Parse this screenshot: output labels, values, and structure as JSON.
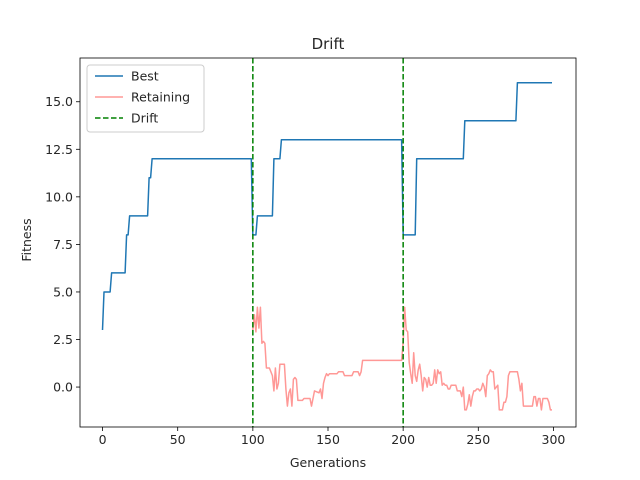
{
  "chart_data": {
    "type": "line",
    "title": "Drift",
    "xlabel": "Generations",
    "ylabel": "Fitness",
    "xlim": [
      -15,
      315
    ],
    "ylim": [
      -2.1,
      17.3
    ],
    "xticks": [
      0,
      50,
      100,
      150,
      200,
      250,
      300
    ],
    "xtick_labels": [
      "0",
      "50",
      "100",
      "150",
      "200",
      "250",
      "300"
    ],
    "yticks": [
      0.0,
      2.5,
      5.0,
      7.5,
      10.0,
      12.5,
      15.0
    ],
    "ytick_labels": [
      "0.0",
      "2.5",
      "5.0",
      "7.5",
      "10.0",
      "12.5",
      "15.0"
    ],
    "legend_position": "top-left",
    "grid": false,
    "series": [
      {
        "name": "Best",
        "color": "#1f77b4",
        "style": "solid",
        "points": [
          [
            0,
            3
          ],
          [
            1,
            5
          ],
          [
            5,
            5
          ],
          [
            6,
            6
          ],
          [
            15,
            6
          ],
          [
            16,
            8
          ],
          [
            17,
            8
          ],
          [
            18,
            9
          ],
          [
            30,
            9
          ],
          [
            31,
            11
          ],
          [
            32,
            11
          ],
          [
            33,
            12
          ],
          [
            99,
            12
          ],
          [
            100,
            8
          ],
          [
            102,
            8
          ],
          [
            103,
            9
          ],
          [
            113,
            9
          ],
          [
            114,
            12
          ],
          [
            118,
            12
          ],
          [
            119,
            13
          ],
          [
            199,
            13
          ],
          [
            200,
            8
          ],
          [
            208,
            8
          ],
          [
            209,
            12
          ],
          [
            240,
            12
          ],
          [
            241,
            14
          ],
          [
            275,
            14
          ],
          [
            276,
            16
          ],
          [
            299,
            16
          ]
        ]
      },
      {
        "name": "Retaining",
        "color": "#ff9896",
        "style": "solid",
        "points": [
          [
            100,
            3.0
          ],
          [
            101,
            3.8
          ],
          [
            102,
            2.9
          ],
          [
            103,
            4.2
          ],
          [
            104,
            3.1
          ],
          [
            105,
            4.2
          ],
          [
            106,
            2.3
          ],
          [
            107,
            2.4
          ],
          [
            108,
            2.3
          ],
          [
            109,
            1.0
          ],
          [
            111,
            1.0
          ],
          [
            112,
            0.8
          ],
          [
            113,
            0.6
          ],
          [
            114,
            -0.2
          ],
          [
            115,
            1.0
          ],
          [
            116,
            -0.1
          ],
          [
            117,
            0.2
          ],
          [
            118,
            1.2
          ],
          [
            121,
            1.2
          ],
          [
            122,
            -0.1
          ],
          [
            123,
            -1.0
          ],
          [
            124,
            -0.3
          ],
          [
            125,
            -0.1
          ],
          [
            126,
            -1.0
          ],
          [
            127,
            0.4
          ],
          [
            128,
            0.5
          ],
          [
            129,
            0.4
          ],
          [
            130,
            -0.7
          ],
          [
            133,
            -0.7
          ],
          [
            134,
            -0.6
          ],
          [
            138,
            -0.6
          ],
          [
            139,
            -1.0
          ],
          [
            140,
            -0.6
          ],
          [
            141,
            -0.2
          ],
          [
            144,
            -0.3
          ],
          [
            145,
            -0.1
          ],
          [
            146,
            -0.6
          ],
          [
            147,
            0.2
          ],
          [
            148,
            0.5
          ],
          [
            149,
            0.7
          ],
          [
            150,
            0.6
          ],
          [
            151,
            0.7
          ],
          [
            156,
            0.7
          ],
          [
            157,
            0.8
          ],
          [
            160,
            0.8
          ],
          [
            161,
            0.6
          ],
          [
            166,
            0.6
          ],
          [
            167,
            0.8
          ],
          [
            170,
            0.8
          ],
          [
            171,
            0.6
          ],
          [
            172,
            0.8
          ],
          [
            173,
            1.4
          ],
          [
            199,
            1.4
          ],
          [
            200,
            2.4
          ],
          [
            201,
            4.2
          ],
          [
            202,
            3.0
          ],
          [
            203,
            2.9
          ],
          [
            204,
            1.3
          ],
          [
            205,
            0.7
          ],
          [
            206,
            0.2
          ],
          [
            207,
            1.8
          ],
          [
            208,
            0.6
          ],
          [
            209,
            0.3
          ],
          [
            210,
            0.9
          ],
          [
            211,
            1.2
          ],
          [
            212,
            0.6
          ],
          [
            213,
            -0.2
          ],
          [
            214,
            0.5
          ],
          [
            215,
            0.4
          ],
          [
            216,
            0.0
          ],
          [
            217,
            0.5
          ],
          [
            218,
            0.1
          ],
          [
            219,
            0.1
          ],
          [
            220,
            0.2
          ],
          [
            221,
            0.9
          ],
          [
            222,
            0.2
          ],
          [
            223,
            0.9
          ],
          [
            224,
            0.7
          ],
          [
            225,
            0.8
          ],
          [
            226,
            0.1
          ],
          [
            227,
            0.2
          ],
          [
            228,
            0.1
          ],
          [
            229,
            0.1
          ],
          [
            230,
            -0.1
          ],
          [
            231,
            -0.1
          ],
          [
            232,
            0.1
          ],
          [
            235,
            0.1
          ],
          [
            236,
            -0.2
          ],
          [
            238,
            -0.2
          ],
          [
            239,
            -0.5
          ],
          [
            240,
            0.0
          ],
          [
            241,
            -1.2
          ],
          [
            242,
            -1.2
          ],
          [
            243,
            -0.9
          ],
          [
            244,
            -0.4
          ],
          [
            245,
            -1.0
          ],
          [
            246,
            -0.5
          ],
          [
            247,
            -0.2
          ],
          [
            248,
            -0.2
          ],
          [
            249,
            -0.1
          ],
          [
            250,
            -0.1
          ],
          [
            251,
            -0.2
          ],
          [
            252,
            -0.1
          ],
          [
            253,
            0.2
          ],
          [
            254,
            0.0
          ],
          [
            255,
            -0.5
          ],
          [
            256,
            0.6
          ],
          [
            257,
            0.7
          ],
          [
            258,
            0.9
          ],
          [
            259,
            0.8
          ],
          [
            260,
            0.8
          ],
          [
            261,
            -0.1
          ],
          [
            262,
            0.0
          ],
          [
            263,
            0.1
          ],
          [
            264,
            -1.2
          ],
          [
            266,
            -1.2
          ],
          [
            267,
            -0.8
          ],
          [
            268,
            -0.8
          ],
          [
            269,
            -0.5
          ],
          [
            270,
            0.6
          ],
          [
            271,
            0.8
          ],
          [
            276,
            0.8
          ],
          [
            277,
            0.4
          ],
          [
            278,
            -0.2
          ],
          [
            279,
            0.2
          ],
          [
            280,
            -1.0
          ],
          [
            286,
            -1.0
          ],
          [
            287,
            -0.5
          ],
          [
            288,
            -0.5
          ],
          [
            289,
            -1.0
          ],
          [
            290,
            -0.6
          ],
          [
            291,
            -0.6
          ],
          [
            292,
            -1.2
          ],
          [
            293,
            -0.6
          ],
          [
            295,
            -0.6
          ],
          [
            296,
            -0.6
          ],
          [
            297,
            -0.8
          ],
          [
            298,
            -1.2
          ],
          [
            299,
            -1.2
          ]
        ]
      },
      {
        "name": "Drift",
        "color": "#008000",
        "style": "dashed",
        "vlines": [
          100,
          200
        ]
      }
    ]
  }
}
